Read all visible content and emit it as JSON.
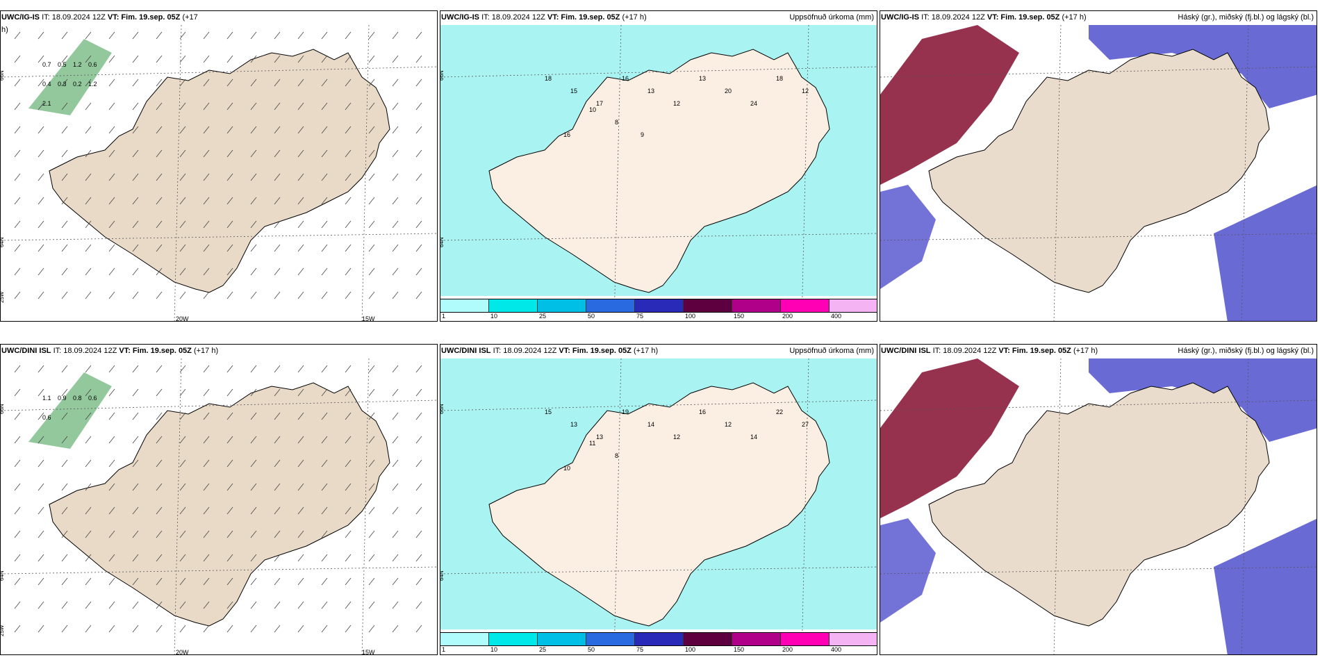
{
  "panels": [
    {
      "id": "r1c1",
      "header": {
        "model": "UWC/IG-IS",
        "it": "IT: 18.09.2024 12Z",
        "vt_label": "VT: Fim. 19.sep. 05Z",
        "lead": "(+17",
        "wrap": "h)",
        "right": ""
      },
      "axis": {
        "x": [
          "20W",
          "15W"
        ],
        "y": [
          "66N",
          "64N",
          "25W"
        ]
      },
      "values": [
        "0.7",
        "0.5",
        "1.2",
        "0.6",
        "0.4",
        "0.3",
        "0.2",
        "1.2",
        "2.1"
      ],
      "colors": {
        "land": "#e9dac8",
        "field": "#3a9a4a"
      }
    },
    {
      "id": "r1c2",
      "header": {
        "model": "UWC/IG-IS",
        "it": "IT: 18.09.2024 12Z",
        "vt_label": "VT: Fim. 19.sep. 05Z",
        "lead": "(+17 h)",
        "right": "Uppsöfnuð úrkoma (mm)"
      },
      "axis": {
        "y": [
          "66N",
          "64N"
        ]
      },
      "values": [
        "18",
        "15",
        "17",
        "16",
        "13",
        "12",
        "13",
        "20",
        "24",
        "18",
        "12",
        "16",
        "10",
        "8",
        "9"
      ],
      "colors": {
        "land": "#fbeee2",
        "field": "#a9f3f2"
      }
    },
    {
      "id": "r1c3",
      "header": {
        "model": "UWC/IG-IS",
        "it": "IT: 18.09.2024 12Z",
        "vt_label": "VT: Fim. 19.sep. 05Z",
        "lead": "(+17 h)",
        "right": "Háský (gr.), miðský (fj.bl.) og lágský (bl.)"
      },
      "colors": {
        "land": "#eadccd",
        "low": "#5a5ad0",
        "high": "#8b1c3a"
      }
    },
    {
      "id": "r2c1",
      "header": {
        "model": "UWC/DINI ISL",
        "it": "IT: 18.09.2024 12Z",
        "vt_label": "VT: Fim. 19.sep. 05Z",
        "lead": "(+17 h)",
        "right": ""
      },
      "axis": {
        "x": [
          "20W",
          "15W"
        ],
        "y": [
          "66N",
          "64N",
          "25W"
        ]
      },
      "values": [
        "1.1",
        "0.9",
        "0.8",
        "0.6",
        "0.6"
      ],
      "colors": {
        "land": "#e9dac8",
        "field": "#3a9a4a"
      }
    },
    {
      "id": "r2c2",
      "header": {
        "model": "UWC/DINI ISL",
        "it": "IT: 18.09.2024 12Z",
        "vt_label": "VT: Fim. 19.sep. 05Z",
        "lead": "(+17 h)",
        "right": "Uppsöfnuð úrkoma (mm)"
      },
      "axis": {
        "y": [
          "66N",
          "64N"
        ]
      },
      "values": [
        "15",
        "13",
        "13",
        "19",
        "14",
        "12",
        "16",
        "12",
        "14",
        "22",
        "27",
        "10",
        "11",
        "8"
      ],
      "colors": {
        "land": "#fbeee2",
        "field": "#a9f3f2"
      }
    },
    {
      "id": "r2c3",
      "header": {
        "model": "UWC/DINI ISL",
        "it": "IT: 18.09.2024 12Z",
        "vt_label": "VT: Fim. 19.sep. 05Z",
        "lead": "(+17 h)",
        "right": "Háský (gr.), miðský (fj.bl.) og lágský (bl.)"
      },
      "colors": {
        "land": "#eadccd",
        "low": "#5a5ad0",
        "high": "#8b1c3a"
      }
    }
  ],
  "colorbar": {
    "ticks": [
      "1",
      "10",
      "25",
      "50",
      "75",
      "100",
      "150",
      "200",
      "400"
    ],
    "colors": [
      "#b0fbfb",
      "#00e8e8",
      "#00bfe6",
      "#2a6ae0",
      "#2a2ab8",
      "#5e0040",
      "#b0008a",
      "#ff00b4",
      "#f4b4f4"
    ]
  }
}
